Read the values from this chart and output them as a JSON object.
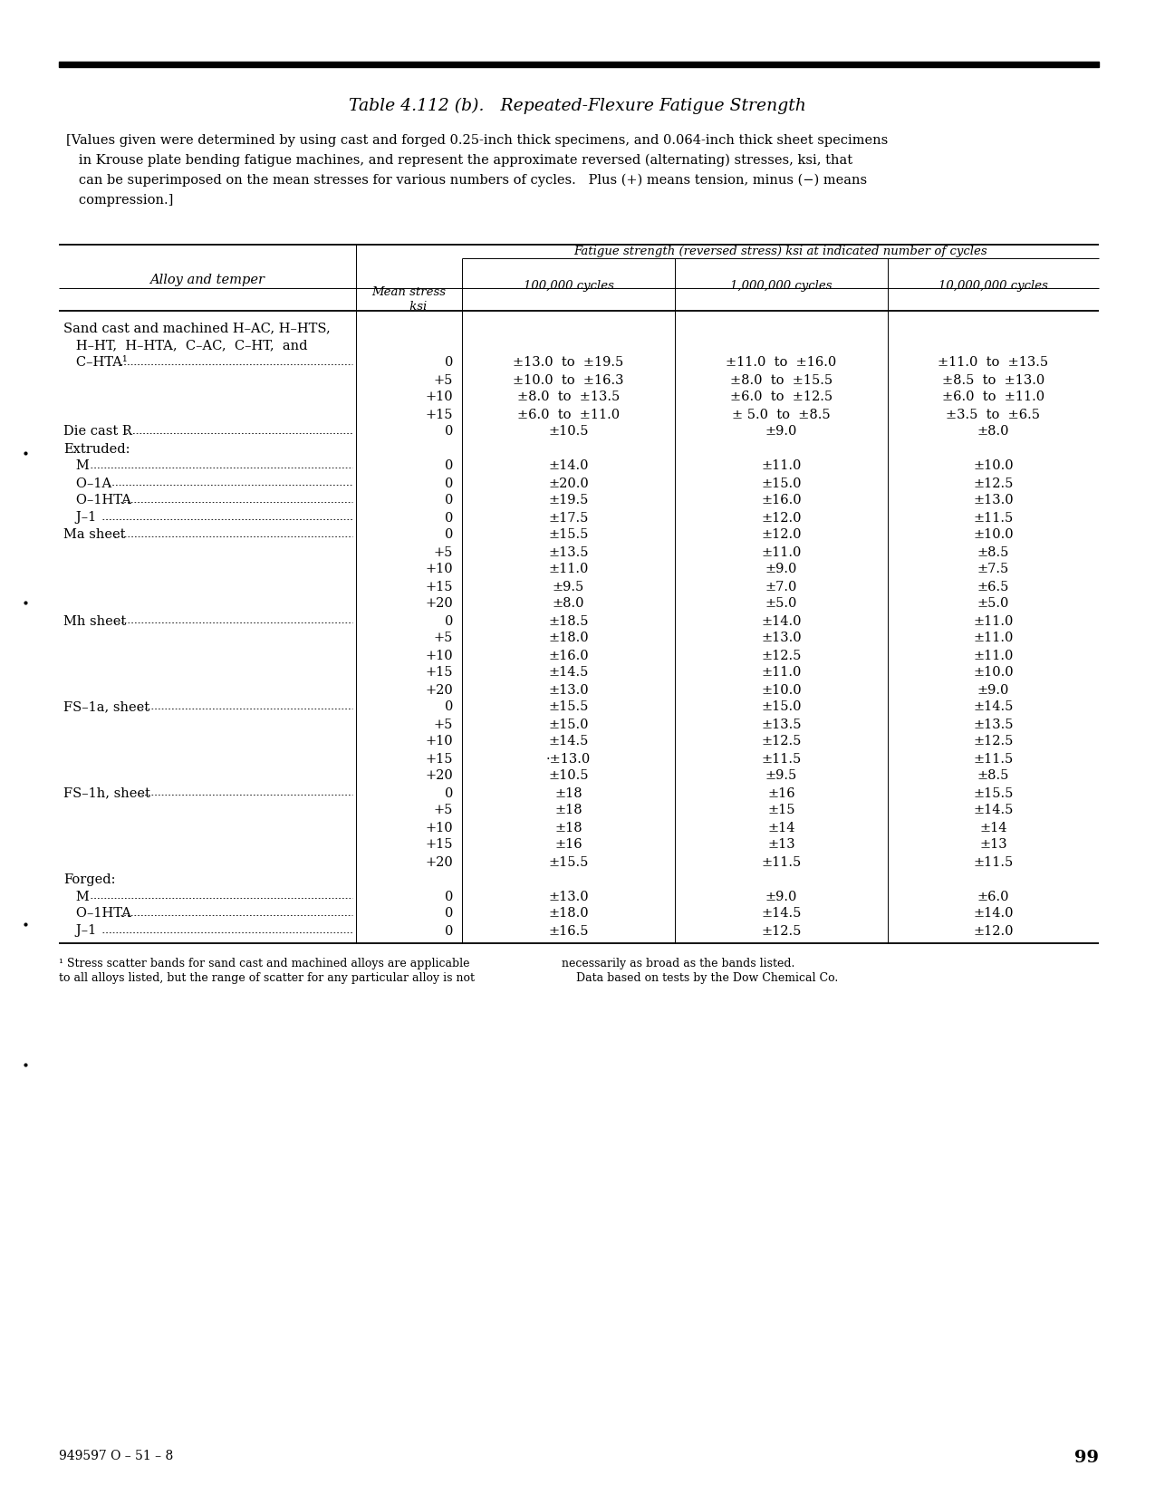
{
  "title": "Table 4.112 (b).   Repeated-Flexure Fatigue Strength",
  "intro_line1": "[Values given were determined by using cast and forged 0.25-inch thick specimens, and 0.064-inch thick sheet specimens",
  "intro_line2": "   in Krouse plate bending fatigue machines, and represent the approximate reversed (alternating) stresses, ksi, that",
  "intro_line3": "   can be superimposed on the mean stresses for various numbers of cycles.   Plus (+) means tension, minus (−) means",
  "intro_line4": "   compression.]",
  "col_header_1": "Alloy and temper",
  "col_header_2": "Mean stress\nksi",
  "col_header_span": "Fatigue strength (reversed stress) ksi at indicated number of cycles",
  "col_header_3": "100,000 cycles",
  "col_header_4": "1,000,000 cycles",
  "col_header_5": "10,000,000 cycles",
  "footnote_left1": "¹ Stress scatter bands for sand cast and machined alloys are applicable",
  "footnote_left2": "to all alloys listed, but the range of scatter for any particular alloy is not",
  "footnote_right1": "necessarily as broad as the bands listed.",
  "footnote_right2": "    Data based on tests by the Dow Chemical Co.",
  "page_number": "99",
  "doc_number": "949597 O – 51 – 8",
  "rows": [
    {
      "alloy": "Sand cast and machined H–AC, H–HTS,",
      "indent": 0,
      "dots": false,
      "mean": "",
      "c1": "",
      "c2": "",
      "c3": ""
    },
    {
      "alloy": "   H–HT,  H–HTA,  C–AC,  C–HT,  and",
      "indent": 0,
      "dots": false,
      "mean": "",
      "c1": "",
      "c2": "",
      "c3": ""
    },
    {
      "alloy": "   C–HTA¹",
      "indent": 0,
      "dots": true,
      "mean": "0",
      "c1": "±13.0  to  ±19.5",
      "c2": "±11.0  to  ±16.0",
      "c3": "±11.0  to  ±13.5"
    },
    {
      "alloy": "",
      "indent": 0,
      "dots": false,
      "mean": "+5",
      "c1": "±10.0  to  ±16.3",
      "c2": "±8.0  to  ±15.5",
      "c3": "±8.5  to  ±13.0"
    },
    {
      "alloy": "",
      "indent": 0,
      "dots": false,
      "mean": "+10",
      "c1": "±8.0  to  ±13.5",
      "c2": "±6.0  to  ±12.5",
      "c3": "±6.0  to  ±11.0"
    },
    {
      "alloy": "",
      "indent": 0,
      "dots": false,
      "mean": "+15",
      "c1": "±6.0  to  ±11.0",
      "c2": "± 5.0  to  ±8.5",
      "c3": "±3.5  to  ±6.5"
    },
    {
      "alloy": "Die cast R",
      "indent": 0,
      "dots": true,
      "mean": "0",
      "c1": "±10.5",
      "c2": "±9.0",
      "c3": "±8.0"
    },
    {
      "alloy": "Extruded:",
      "indent": 0,
      "dots": false,
      "mean": "",
      "c1": "",
      "c2": "",
      "c3": ""
    },
    {
      "alloy": "   M",
      "indent": 1,
      "dots": true,
      "mean": "0",
      "c1": "±14.0",
      "c2": "±11.0",
      "c3": "±10.0"
    },
    {
      "alloy": "   O–1A",
      "indent": 1,
      "dots": true,
      "mean": "0",
      "c1": "±20.0",
      "c2": "±15.0",
      "c3": "±12.5"
    },
    {
      "alloy": "   O–1HTA",
      "indent": 1,
      "dots": true,
      "mean": "0",
      "c1": "±19.5",
      "c2": "±16.0",
      "c3": "±13.0"
    },
    {
      "alloy": "   J–1",
      "indent": 1,
      "dots": true,
      "mean": "0",
      "c1": "±17.5",
      "c2": "±12.0",
      "c3": "±11.5"
    },
    {
      "alloy": "Ma sheet",
      "indent": 0,
      "dots": true,
      "mean": "0",
      "c1": "±15.5",
      "c2": "±12.0",
      "c3": "±10.0"
    },
    {
      "alloy": "",
      "indent": 0,
      "dots": false,
      "mean": "+5",
      "c1": "±13.5",
      "c2": "±11.0",
      "c3": "±8.5"
    },
    {
      "alloy": "",
      "indent": 0,
      "dots": false,
      "mean": "+10",
      "c1": "±11.0",
      "c2": "±9.0",
      "c3": "±7.5"
    },
    {
      "alloy": "",
      "indent": 0,
      "dots": false,
      "mean": "+15",
      "c1": "±9.5",
      "c2": "±7.0",
      "c3": "±6.5"
    },
    {
      "alloy": "",
      "indent": 0,
      "dots": false,
      "mean": "+20",
      "c1": "±8.0",
      "c2": "±5.0",
      "c3": "±5.0"
    },
    {
      "alloy": "Mh sheet",
      "indent": 0,
      "dots": true,
      "mean": "0",
      "c1": "±18.5",
      "c2": "±14.0",
      "c3": "±11.0"
    },
    {
      "alloy": "",
      "indent": 0,
      "dots": false,
      "mean": "+5",
      "c1": "±18.0",
      "c2": "±13.0",
      "c3": "±11.0"
    },
    {
      "alloy": "",
      "indent": 0,
      "dots": false,
      "mean": "+10",
      "c1": "±16.0",
      "c2": "±12.5",
      "c3": "±11.0"
    },
    {
      "alloy": "",
      "indent": 0,
      "dots": false,
      "mean": "+15",
      "c1": "±14.5",
      "c2": "±11.0",
      "c3": "±10.0"
    },
    {
      "alloy": "",
      "indent": 0,
      "dots": false,
      "mean": "+20",
      "c1": "±13.0",
      "c2": "±10.0",
      "c3": "±9.0"
    },
    {
      "alloy": "FS–1a, sheet",
      "indent": 0,
      "dots": true,
      "mean": "0",
      "c1": "±15.5",
      "c2": "±15.0",
      "c3": "±14.5"
    },
    {
      "alloy": "",
      "indent": 0,
      "dots": false,
      "mean": "+5",
      "c1": "±15.0",
      "c2": "±13.5",
      "c3": "±13.5"
    },
    {
      "alloy": "",
      "indent": 0,
      "dots": false,
      "mean": "+10",
      "c1": "±14.5",
      "c2": "±12.5",
      "c3": "±12.5"
    },
    {
      "alloy": "",
      "indent": 0,
      "dots": false,
      "mean": "+15",
      "c1": "·±13.0",
      "c2": "±11.5",
      "c3": "±11.5"
    },
    {
      "alloy": "",
      "indent": 0,
      "dots": false,
      "mean": "+20",
      "c1": "±10.5",
      "c2": "±9.5",
      "c3": "±8.5"
    },
    {
      "alloy": "FS–1h, sheet",
      "indent": 0,
      "dots": true,
      "mean": "0",
      "c1": "±18",
      "c2": "±16",
      "c3": "±15.5"
    },
    {
      "alloy": "",
      "indent": 0,
      "dots": false,
      "mean": "+5",
      "c1": "±18",
      "c2": "±15",
      "c3": "±14.5"
    },
    {
      "alloy": "",
      "indent": 0,
      "dots": false,
      "mean": "+10",
      "c1": "±18",
      "c2": "±14",
      "c3": "±14"
    },
    {
      "alloy": "",
      "indent": 0,
      "dots": false,
      "mean": "+15",
      "c1": "±16",
      "c2": "±13",
      "c3": "±13"
    },
    {
      "alloy": "",
      "indent": 0,
      "dots": false,
      "mean": "+20",
      "c1": "±15.5",
      "c2": "±11.5",
      "c3": "±11.5"
    },
    {
      "alloy": "Forged:",
      "indent": 0,
      "dots": false,
      "mean": "",
      "c1": "",
      "c2": "",
      "c3": ""
    },
    {
      "alloy": "   M",
      "indent": 1,
      "dots": true,
      "mean": "0",
      "c1": "±13.0",
      "c2": "±9.0",
      "c3": "±6.0"
    },
    {
      "alloy": "   O–1HTA",
      "indent": 1,
      "dots": true,
      "mean": "0",
      "c1": "±18.0",
      "c2": "±14.5",
      "c3": "±14.0"
    },
    {
      "alloy": "   J–1",
      "indent": 1,
      "dots": true,
      "mean": "0",
      "c1": "±16.5",
      "c2": "±12.5",
      "c3": "±12.0"
    }
  ]
}
